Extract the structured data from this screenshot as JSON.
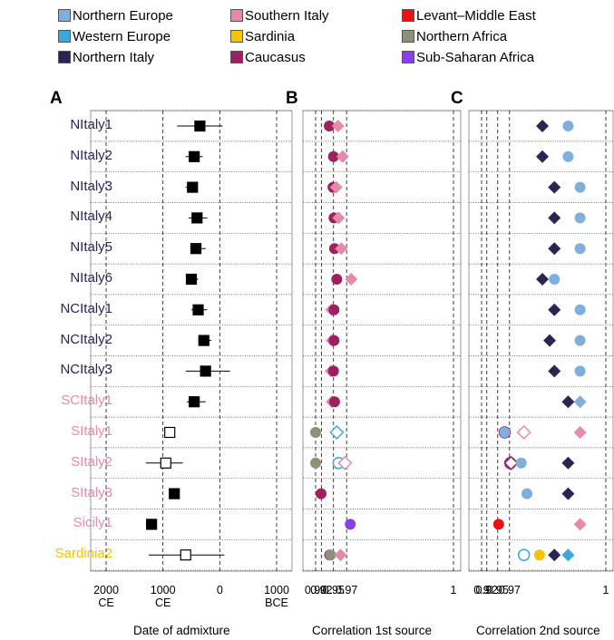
{
  "legend": [
    {
      "label": "Northern Europe",
      "color": "#7fb0dd"
    },
    {
      "label": "Western Europe",
      "color": "#3aa8dc"
    },
    {
      "label": "Northern Italy",
      "color": "#2a2553"
    },
    {
      "label": "Southern Italy",
      "color": "#e58aa8"
    },
    {
      "label": "Sardinia",
      "color": "#f6c400"
    },
    {
      "label": "Caucasus",
      "color": "#9e2060"
    },
    {
      "label": "Levant–Middle East",
      "color": "#ee1111"
    },
    {
      "label": "Northern Africa",
      "color": "#8e9078"
    },
    {
      "label": "Sub-Saharan Africa",
      "color": "#8c3dea"
    }
  ],
  "panels": {
    "a": "A",
    "b": "B",
    "c": "C"
  },
  "rows": [
    {
      "label": "NItaly1",
      "color": "#2a2553"
    },
    {
      "label": "NItaly2",
      "color": "#2a2553"
    },
    {
      "label": "NItaly3",
      "color": "#2a2553"
    },
    {
      "label": "NItaly4",
      "color": "#2a2553"
    },
    {
      "label": "NItaly5",
      "color": "#2a2553"
    },
    {
      "label": "NItaly6",
      "color": "#2a2553"
    },
    {
      "label": "NCItaly1",
      "color": "#2a2553"
    },
    {
      "label": "NCItaly2",
      "color": "#2a2553"
    },
    {
      "label": "NCItaly3",
      "color": "#2a2553"
    },
    {
      "label": "SCItaly1",
      "color": "#e58aa8"
    },
    {
      "label": "SItaly1",
      "color": "#e58aa8"
    },
    {
      "label": "SItaly2",
      "color": "#e58aa8"
    },
    {
      "label": "SItaly3",
      "color": "#e58aa8"
    },
    {
      "label": "Sicily1",
      "color": "#e58aa8"
    },
    {
      "label": "Sardinia2",
      "color": "#f6c400"
    }
  ],
  "chart_data": [
    {
      "type": "scatter",
      "panel": "A",
      "xlabel": "Date of admixture",
      "ticks": [
        {
          "value": -2000,
          "lines": [
            "2000",
            "CE"
          ]
        },
        {
          "value": -1000,
          "lines": [
            "1000",
            "CE"
          ]
        },
        {
          "value": 0,
          "lines": [
            "0"
          ]
        },
        {
          "value": 1000,
          "lines": [
            "1000",
            "BCE"
          ]
        }
      ],
      "xlim": [
        -2000,
        1000
      ],
      "points": [
        {
          "row": 0,
          "value": -350,
          "lo": -750,
          "hi": 50,
          "filled": true
        },
        {
          "row": 1,
          "value": -450,
          "lo": -600,
          "hi": -300,
          "filled": true
        },
        {
          "row": 2,
          "value": -480,
          "lo": -600,
          "hi": -400,
          "filled": true
        },
        {
          "row": 3,
          "value": -400,
          "lo": -550,
          "hi": -220,
          "filled": true
        },
        {
          "row": 4,
          "value": -420,
          "lo": -520,
          "hi": -250,
          "filled": true
        },
        {
          "row": 5,
          "value": -500,
          "lo": -580,
          "hi": -380,
          "filled": true
        },
        {
          "row": 6,
          "value": -380,
          "lo": -500,
          "hi": -220,
          "filled": true
        },
        {
          "row": 7,
          "value": -280,
          "lo": -380,
          "hi": -150,
          "filled": true
        },
        {
          "row": 8,
          "value": -250,
          "lo": -600,
          "hi": 180,
          "filled": true
        },
        {
          "row": 9,
          "value": -450,
          "lo": -580,
          "hi": -250,
          "filled": true
        },
        {
          "row": 10,
          "value": -880,
          "lo": -900,
          "hi": -860,
          "filled": false
        },
        {
          "row": 11,
          "value": -950,
          "lo": -1300,
          "hi": -650,
          "filled": false
        },
        {
          "row": 12,
          "value": -800,
          "lo": -850,
          "hi": -760,
          "filled": true
        },
        {
          "row": 13,
          "value": -1200,
          "lo": -1300,
          "hi": -1120,
          "filled": true
        },
        {
          "row": 14,
          "value": -600,
          "lo": -1250,
          "hi": 80,
          "filled": false
        }
      ]
    },
    {
      "type": "scatter",
      "panel": "B",
      "xlabel": "Correlation 1st source",
      "scale": "reciprocal",
      "ticks": [
        0.9,
        0.92,
        0.95,
        0.97,
        1
      ],
      "tick_labels": [
        "0.90",
        "0.92",
        "0.95",
        "0.97",
        "1"
      ],
      "xlim": [
        0.9,
        1
      ],
      "points": [
        {
          "row": 0,
          "value": 0.941,
          "group": "Caucasus",
          "shape": "circle",
          "filled": true
        },
        {
          "row": 0,
          "value": 0.958,
          "group": "Southern Italy",
          "shape": "diamond",
          "filled": true
        },
        {
          "row": 1,
          "value": 0.95,
          "group": "Caucasus",
          "shape": "circle",
          "filled": true
        },
        {
          "row": 1,
          "value": 0.965,
          "group": "Southern Italy",
          "shape": "diamond",
          "filled": true
        },
        {
          "row": 2,
          "value": 0.949,
          "group": "Caucasus",
          "shape": "circle",
          "filled": true
        },
        {
          "row": 2,
          "value": 0.955,
          "group": "Southern Italy",
          "shape": "diamond",
          "filled": true
        },
        {
          "row": 3,
          "value": 0.951,
          "group": "Caucasus",
          "shape": "circle",
          "filled": true
        },
        {
          "row": 3,
          "value": 0.959,
          "group": "Southern Italy",
          "shape": "diamond",
          "filled": true
        },
        {
          "row": 4,
          "value": 0.952,
          "group": "Caucasus",
          "shape": "circle",
          "filled": true
        },
        {
          "row": 4,
          "value": 0.963,
          "group": "Southern Italy",
          "shape": "diamond",
          "filled": true
        },
        {
          "row": 5,
          "value": 0.956,
          "group": "Caucasus",
          "shape": "circle",
          "filled": true
        },
        {
          "row": 5,
          "value": 0.975,
          "group": "Southern Italy",
          "shape": "diamond",
          "filled": true
        },
        {
          "row": 6,
          "value": 0.946,
          "group": "Southern Italy",
          "shape": "diamond",
          "filled": true
        },
        {
          "row": 6,
          "value": 0.951,
          "group": "Caucasus",
          "shape": "circle",
          "filled": true
        },
        {
          "row": 7,
          "value": 0.947,
          "group": "Southern Italy",
          "shape": "diamond",
          "filled": true
        },
        {
          "row": 7,
          "value": 0.951,
          "group": "Caucasus",
          "shape": "circle",
          "filled": true
        },
        {
          "row": 8,
          "value": 0.945,
          "group": "Southern Italy",
          "shape": "diamond",
          "filled": true
        },
        {
          "row": 8,
          "value": 0.95,
          "group": "Caucasus",
          "shape": "circle",
          "filled": true
        },
        {
          "row": 9,
          "value": 0.947,
          "group": "Southern Italy",
          "shape": "diamond",
          "filled": true
        },
        {
          "row": 9,
          "value": 0.952,
          "group": "Caucasus",
          "shape": "circle",
          "filled": true
        },
        {
          "row": 10,
          "value": 0.9,
          "group": "Northern Africa",
          "shape": "circle",
          "filled": true
        },
        {
          "row": 10,
          "value": 0.956,
          "group": "Western Europe",
          "shape": "diamond",
          "filled": false
        },
        {
          "row": 11,
          "value": 0.9,
          "group": "Northern Africa",
          "shape": "circle",
          "filled": true
        },
        {
          "row": 11,
          "value": 0.959,
          "group": "Western Europe",
          "shape": "circle",
          "filled": false
        },
        {
          "row": 11,
          "value": 0.968,
          "group": "Southern Italy",
          "shape": "diamond",
          "filled": false
        },
        {
          "row": 12,
          "value": 0.919,
          "group": "Caucasus",
          "shape": "circle",
          "filled": true
        },
        {
          "row": 13,
          "value": 0.974,
          "group": "Sub-Saharan Africa",
          "shape": "circle",
          "filled": true
        },
        {
          "row": 14,
          "value": 0.942,
          "group": "Caucasus",
          "shape": "circle",
          "filled": true
        },
        {
          "row": 14,
          "value": 0.944,
          "group": "Northern Africa",
          "shape": "circle",
          "filled": true
        },
        {
          "row": 14,
          "value": 0.962,
          "group": "Southern Italy",
          "shape": "diamond",
          "filled": true
        }
      ]
    },
    {
      "type": "scatter",
      "panel": "C",
      "xlabel": "Correlation 2nd source",
      "scale": "reciprocal",
      "ticks": [
        0.9,
        0.92,
        0.95,
        0.97,
        1
      ],
      "tick_labels": [
        "0.9",
        "0.92",
        "0.95",
        "0.97",
        "1"
      ],
      "xlim": [
        0.9,
        1
      ],
      "points": [
        {
          "row": 0,
          "value": 0.993,
          "group": "Northern Italy",
          "shape": "diamond",
          "filled": true
        },
        {
          "row": 0,
          "value": 0.998,
          "group": "Northern Europe",
          "shape": "circle",
          "filled": true
        },
        {
          "row": 1,
          "value": 0.993,
          "group": "Northern Italy",
          "shape": "diamond",
          "filled": true
        },
        {
          "row": 1,
          "value": 0.998,
          "group": "Northern Europe",
          "shape": "circle",
          "filled": true
        },
        {
          "row": 2,
          "value": 0.996,
          "group": "Northern Italy",
          "shape": "diamond",
          "filled": true
        },
        {
          "row": 2,
          "value": 0.999,
          "group": "Northern Europe",
          "shape": "circle",
          "filled": true
        },
        {
          "row": 3,
          "value": 0.996,
          "group": "Northern Italy",
          "shape": "diamond",
          "filled": true
        },
        {
          "row": 3,
          "value": 0.999,
          "group": "Northern Europe",
          "shape": "circle",
          "filled": true
        },
        {
          "row": 4,
          "value": 0.996,
          "group": "Northern Italy",
          "shape": "diamond",
          "filled": true
        },
        {
          "row": 4,
          "value": 0.999,
          "group": "Northern Europe",
          "shape": "circle",
          "filled": true
        },
        {
          "row": 5,
          "value": 0.993,
          "group": "Northern Italy",
          "shape": "diamond",
          "filled": true
        },
        {
          "row": 5,
          "value": 0.996,
          "group": "Northern Europe",
          "shape": "circle",
          "filled": true
        },
        {
          "row": 6,
          "value": 0.996,
          "group": "Northern Italy",
          "shape": "diamond",
          "filled": true
        },
        {
          "row": 6,
          "value": 0.999,
          "group": "Northern Europe",
          "shape": "circle",
          "filled": true
        },
        {
          "row": 7,
          "value": 0.995,
          "group": "Northern Italy",
          "shape": "diamond",
          "filled": true
        },
        {
          "row": 7,
          "value": 0.999,
          "group": "Northern Europe",
          "shape": "circle",
          "filled": true
        },
        {
          "row": 8,
          "value": 0.996,
          "group": "Northern Italy",
          "shape": "diamond",
          "filled": true
        },
        {
          "row": 8,
          "value": 0.999,
          "group": "Northern Europe",
          "shape": "circle",
          "filled": true
        },
        {
          "row": 9,
          "value": 0.998,
          "group": "Northern Italy",
          "shape": "diamond",
          "filled": true
        },
        {
          "row": 9,
          "value": 0.999,
          "group": "Northern Europe",
          "shape": "diamond",
          "filled": true
        },
        {
          "row": 10,
          "value": 0.963,
          "group": "Caucasus",
          "shape": "circle",
          "filled": false
        },
        {
          "row": 10,
          "value": 0.963,
          "group": "Northern Europe",
          "shape": "circle",
          "filled": true
        },
        {
          "row": 10,
          "value": 0.984,
          "group": "Southern Italy",
          "shape": "diamond",
          "filled": false
        },
        {
          "row": 10,
          "value": 0.999,
          "group": "Southern Italy",
          "shape": "diamond",
          "filled": true
        },
        {
          "row": 11,
          "value": 0.971,
          "group": "Caucasus",
          "shape": "circle",
          "filled": false
        },
        {
          "row": 11,
          "value": 0.972,
          "group": "Caucasus",
          "shape": "diamond",
          "filled": false
        },
        {
          "row": 11,
          "value": 0.982,
          "group": "Northern Europe",
          "shape": "circle",
          "filled": true
        },
        {
          "row": 11,
          "value": 0.998,
          "group": "Northern Italy",
          "shape": "diamond",
          "filled": true
        },
        {
          "row": 12,
          "value": 0.986,
          "group": "Northern Europe",
          "shape": "circle",
          "filled": true
        },
        {
          "row": 12,
          "value": 0.998,
          "group": "Northern Italy",
          "shape": "diamond",
          "filled": true
        },
        {
          "row": 13,
          "value": 0.952,
          "group": "Levant–Middle East",
          "shape": "circle",
          "filled": true
        },
        {
          "row": 13,
          "value": 0.999,
          "group": "Southern Italy",
          "shape": "diamond",
          "filled": true
        },
        {
          "row": 14,
          "value": 0.984,
          "group": "Western Europe",
          "shape": "circle",
          "filled": false
        },
        {
          "row": 14,
          "value": 0.992,
          "group": "Sardinia",
          "shape": "circle",
          "filled": true
        },
        {
          "row": 14,
          "value": 0.996,
          "group": "Northern Italy",
          "shape": "diamond",
          "filled": true
        },
        {
          "row": 14,
          "value": 0.998,
          "group": "Western Europe",
          "shape": "diamond",
          "filled": true
        }
      ]
    }
  ]
}
